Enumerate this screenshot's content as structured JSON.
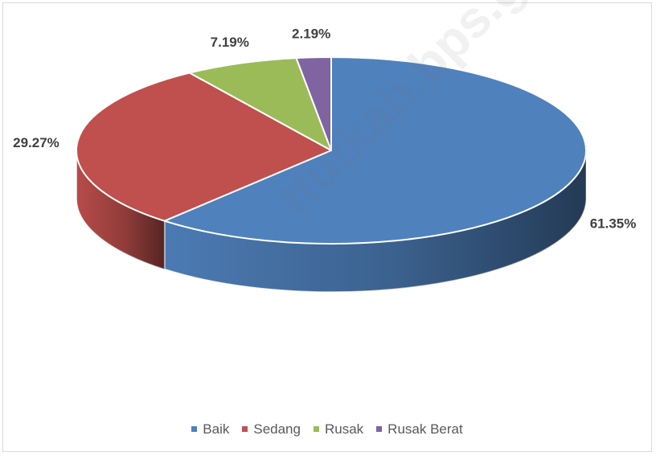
{
  "chart_data": {
    "type": "pie",
    "style": "3d",
    "categories": [
      "Baik",
      "Sedang",
      "Rusak",
      "Rusak Berat"
    ],
    "values": [
      61.35,
      29.27,
      7.19,
      2.19
    ],
    "labels": [
      "61.35%",
      "29.27%",
      "7.19%",
      "2.19%"
    ],
    "colors": [
      "#4f81bd",
      "#c0504d",
      "#9bbb59",
      "#8064a2"
    ],
    "legend": "bottom"
  },
  "watermark": "ttutkab.bps.go.id"
}
